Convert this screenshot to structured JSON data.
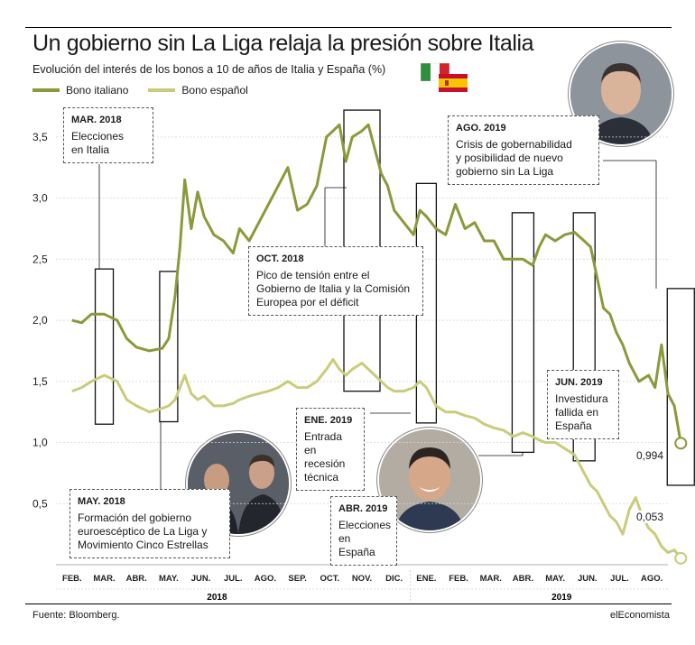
{
  "title": "Un gobierno sin La Liga relaja la presión sobre Italia",
  "subtitle": "Evolución del interés de los bonos a 10 de años de Italia y España (%)",
  "footer": {
    "source": "Fuente: Bloomberg.",
    "brand": "elEconomista"
  },
  "colors": {
    "italy": "#8a9a3b",
    "spain": "#c9cc7a"
  },
  "chart_data": {
    "type": "line",
    "ylim": [
      0,
      3.75
    ],
    "yticks": [
      "0,5",
      "1,0",
      "1,5",
      "2,0",
      "2,5",
      "3,0",
      "3,5"
    ],
    "ytick_values": [
      0.5,
      1.0,
      1.5,
      2.0,
      2.5,
      3.0,
      3.5
    ],
    "months": [
      "FEB.",
      "MAR.",
      "ABR.",
      "MAY.",
      "JUN.",
      "JUL.",
      "AGO.",
      "SEP.",
      "OCT.",
      "NOV.",
      "DIC.",
      "ENE.",
      "FEB.",
      "MAR.",
      "ABR.",
      "MAY.",
      "JUN.",
      "JUL.",
      "AGO."
    ],
    "years": [
      "2018",
      "2019"
    ],
    "series": [
      {
        "name": "Bono italiano",
        "color": "#8a9a3b",
        "points": [
          [
            0,
            2.0
          ],
          [
            0.3,
            1.98
          ],
          [
            0.6,
            2.05
          ],
          [
            1.0,
            2.05
          ],
          [
            1.4,
            2.0
          ],
          [
            1.7,
            1.85
          ],
          [
            2.0,
            1.78
          ],
          [
            2.4,
            1.75
          ],
          [
            2.8,
            1.77
          ],
          [
            3.0,
            1.85
          ],
          [
            3.2,
            2.2
          ],
          [
            3.35,
            2.6
          ],
          [
            3.5,
            3.15
          ],
          [
            3.7,
            2.75
          ],
          [
            3.9,
            3.05
          ],
          [
            4.1,
            2.85
          ],
          [
            4.4,
            2.7
          ],
          [
            4.7,
            2.65
          ],
          [
            5.0,
            2.55
          ],
          [
            5.2,
            2.75
          ],
          [
            5.5,
            2.65
          ],
          [
            5.8,
            2.8
          ],
          [
            6.1,
            2.95
          ],
          [
            6.4,
            3.1
          ],
          [
            6.7,
            3.25
          ],
          [
            7.0,
            2.9
          ],
          [
            7.3,
            2.95
          ],
          [
            7.6,
            3.1
          ],
          [
            7.9,
            3.5
          ],
          [
            8.1,
            3.55
          ],
          [
            8.3,
            3.6
          ],
          [
            8.5,
            3.3
          ],
          [
            8.7,
            3.5
          ],
          [
            9.0,
            3.55
          ],
          [
            9.2,
            3.6
          ],
          [
            9.4,
            3.4
          ],
          [
            9.6,
            3.2
          ],
          [
            9.8,
            3.1
          ],
          [
            10.0,
            2.9
          ],
          [
            10.3,
            2.8
          ],
          [
            10.6,
            2.7
          ],
          [
            10.8,
            2.9
          ],
          [
            11.0,
            2.85
          ],
          [
            11.3,
            2.75
          ],
          [
            11.6,
            2.7
          ],
          [
            11.9,
            2.95
          ],
          [
            12.2,
            2.75
          ],
          [
            12.5,
            2.8
          ],
          [
            12.8,
            2.65
          ],
          [
            13.1,
            2.65
          ],
          [
            13.4,
            2.5
          ],
          [
            13.7,
            2.5
          ],
          [
            14.0,
            2.5
          ],
          [
            14.3,
            2.45
          ],
          [
            14.5,
            2.6
          ],
          [
            14.7,
            2.7
          ],
          [
            15.0,
            2.65
          ],
          [
            15.3,
            2.7
          ],
          [
            15.6,
            2.72
          ],
          [
            15.9,
            2.65
          ],
          [
            16.1,
            2.6
          ],
          [
            16.3,
            2.35
          ],
          [
            16.5,
            2.1
          ],
          [
            16.7,
            2.05
          ],
          [
            16.9,
            1.9
          ],
          [
            17.1,
            1.8
          ],
          [
            17.3,
            1.65
          ],
          [
            17.6,
            1.5
          ],
          [
            17.9,
            1.55
          ],
          [
            18.1,
            1.45
          ],
          [
            18.3,
            1.8
          ],
          [
            18.5,
            1.4
          ],
          [
            18.7,
            1.3
          ],
          [
            18.9,
            0.994
          ]
        ]
      },
      {
        "name": "Bono español",
        "color": "#c9cc7a",
        "points": [
          [
            0,
            1.42
          ],
          [
            0.3,
            1.45
          ],
          [
            0.6,
            1.5
          ],
          [
            1.0,
            1.55
          ],
          [
            1.4,
            1.5
          ],
          [
            1.7,
            1.35
          ],
          [
            2.0,
            1.3
          ],
          [
            2.4,
            1.25
          ],
          [
            2.8,
            1.28
          ],
          [
            3.0,
            1.3
          ],
          [
            3.2,
            1.35
          ],
          [
            3.35,
            1.45
          ],
          [
            3.5,
            1.55
          ],
          [
            3.7,
            1.4
          ],
          [
            3.9,
            1.35
          ],
          [
            4.1,
            1.38
          ],
          [
            4.4,
            1.3
          ],
          [
            4.7,
            1.3
          ],
          [
            5.0,
            1.32
          ],
          [
            5.2,
            1.35
          ],
          [
            5.5,
            1.38
          ],
          [
            5.8,
            1.4
          ],
          [
            6.1,
            1.42
          ],
          [
            6.4,
            1.45
          ],
          [
            6.7,
            1.5
          ],
          [
            7.0,
            1.45
          ],
          [
            7.3,
            1.45
          ],
          [
            7.6,
            1.5
          ],
          [
            7.9,
            1.6
          ],
          [
            8.1,
            1.68
          ],
          [
            8.3,
            1.6
          ],
          [
            8.5,
            1.55
          ],
          [
            8.7,
            1.6
          ],
          [
            9.0,
            1.65
          ],
          [
            9.2,
            1.6
          ],
          [
            9.4,
            1.55
          ],
          [
            9.6,
            1.5
          ],
          [
            9.8,
            1.45
          ],
          [
            10.0,
            1.42
          ],
          [
            10.3,
            1.42
          ],
          [
            10.6,
            1.45
          ],
          [
            10.8,
            1.5
          ],
          [
            11.0,
            1.45
          ],
          [
            11.3,
            1.3
          ],
          [
            11.6,
            1.25
          ],
          [
            11.9,
            1.25
          ],
          [
            12.2,
            1.22
          ],
          [
            12.5,
            1.2
          ],
          [
            12.8,
            1.15
          ],
          [
            13.1,
            1.12
          ],
          [
            13.4,
            1.1
          ],
          [
            13.7,
            1.05
          ],
          [
            14.0,
            1.08
          ],
          [
            14.3,
            1.05
          ],
          [
            14.5,
            1.02
          ],
          [
            14.7,
            1.0
          ],
          [
            15.0,
            1.0
          ],
          [
            15.3,
            0.95
          ],
          [
            15.6,
            0.9
          ],
          [
            15.9,
            0.75
          ],
          [
            16.1,
            0.65
          ],
          [
            16.3,
            0.6
          ],
          [
            16.5,
            0.5
          ],
          [
            16.7,
            0.4
          ],
          [
            16.9,
            0.35
          ],
          [
            17.1,
            0.25
          ],
          [
            17.3,
            0.45
          ],
          [
            17.5,
            0.55
          ],
          [
            17.7,
            0.4
          ],
          [
            17.9,
            0.3
          ],
          [
            18.1,
            0.25
          ],
          [
            18.3,
            0.15
          ],
          [
            18.5,
            0.1
          ],
          [
            18.7,
            0.12
          ],
          [
            18.9,
            0.053
          ]
        ]
      }
    ],
    "end_labels": [
      "0,994",
      "0,053"
    ]
  },
  "annotations": [
    {
      "head": "MAR. 2018",
      "text": "Elecciones\nen Italia"
    },
    {
      "head": "MAY. 2018",
      "text": "Formación del gobierno\neuroescéptico de La Liga y\nMovimiento Cinco Estrellas"
    },
    {
      "head": "OCT. 2018",
      "text": "Pico de tensión entre el\nGobierno de Italia y la Comisión\nEuropea por el déficit"
    },
    {
      "head": "ENE. 2019",
      "text": "Entrada en\nrecesión\ntécnica"
    },
    {
      "head": "ABR. 2019",
      "text": "Elecciones\nen España"
    },
    {
      "head": "JUN. 2019",
      "text": "Investidura\nfallida en\nEspaña"
    },
    {
      "head": "AGO. 2019",
      "text": "Crisis de gobernabilidad\ny posibilidad de nuevo\ngobierno sin La Liga"
    }
  ]
}
